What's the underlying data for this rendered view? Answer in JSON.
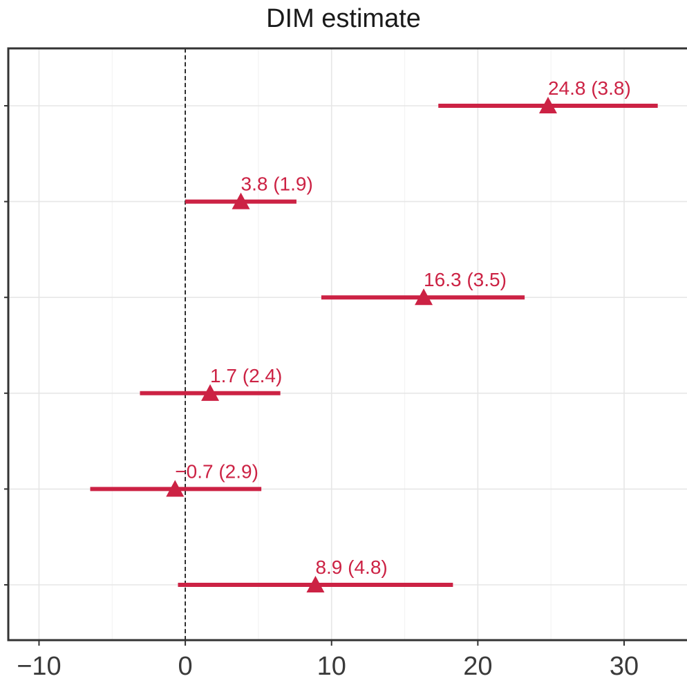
{
  "chart_data": {
    "type": "forest",
    "title": "DIM estimate",
    "xlabel": "",
    "ylabel": "",
    "xlim": [
      -12.1,
      34.3
    ],
    "x_ticks": [
      -10,
      0,
      10,
      20,
      30
    ],
    "x_tick_labels": [
      "−10",
      "0",
      "10",
      "20",
      "30"
    ],
    "reference_line": 0,
    "grid": true,
    "color": "#cc2244",
    "estimates": [
      {
        "value": 24.8,
        "se": 3.8,
        "ci": [
          17.3,
          32.3
        ],
        "label": "24.8 (3.8)"
      },
      {
        "value": 3.8,
        "se": 1.9,
        "ci": [
          0.0,
          7.6
        ],
        "label": "3.8 (1.9)"
      },
      {
        "value": 16.3,
        "se": 3.5,
        "ci": [
          9.3,
          23.2
        ],
        "label": "16.3 (3.5)"
      },
      {
        "value": 1.7,
        "se": 2.4,
        "ci": [
          -3.1,
          6.5
        ],
        "label": "1.7 (2.4)"
      },
      {
        "value": -0.7,
        "se": 2.9,
        "ci": [
          -6.5,
          5.2
        ],
        "label": "−0.7 (2.9)"
      },
      {
        "value": 8.9,
        "se": 4.8,
        "ci": [
          -0.5,
          18.3
        ],
        "label": "8.9 (4.8)"
      }
    ]
  }
}
